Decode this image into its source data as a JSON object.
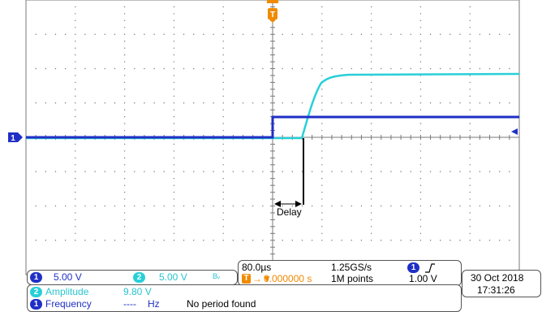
{
  "channels": {
    "ch1": {
      "badge": "1",
      "scale": "5.00 V",
      "color": "#1f2fc6"
    },
    "ch2": {
      "badge": "2",
      "scale": "5.00 V",
      "color": "#29cfd8",
      "bw_glyph": "Bᵥ"
    }
  },
  "timebase": {
    "per_div": "80.0µs",
    "sample_rate": "1.25GS/s",
    "trigger_badge": "1",
    "trigger_slope_icon": "rising-edge",
    "trigger_level": "1.00 V",
    "trigger_marker": "T",
    "trigger_arrow": "→▼",
    "trigger_position": "0.000000 s",
    "record_length": "1M points"
  },
  "datetime": {
    "date": "30 Oct 2018",
    "time": "17:31:26"
  },
  "measurements": [
    {
      "badge": "2",
      "name": "Amplitude",
      "value": "9.80 V",
      "unit": "",
      "note": ""
    },
    {
      "badge": "1",
      "name": "Frequency",
      "value": "----",
      "unit": "Hz",
      "note": "No period found"
    }
  ],
  "annotation": {
    "delay_label": "Delay"
  },
  "markers": {
    "ch1_ground": "1",
    "trigger_top": "T"
  },
  "colors": {
    "trigger": "#f08a00",
    "ch1": "#1f2fc6",
    "ch2": "#29cfd8",
    "grid": "#7a7a7a"
  }
}
